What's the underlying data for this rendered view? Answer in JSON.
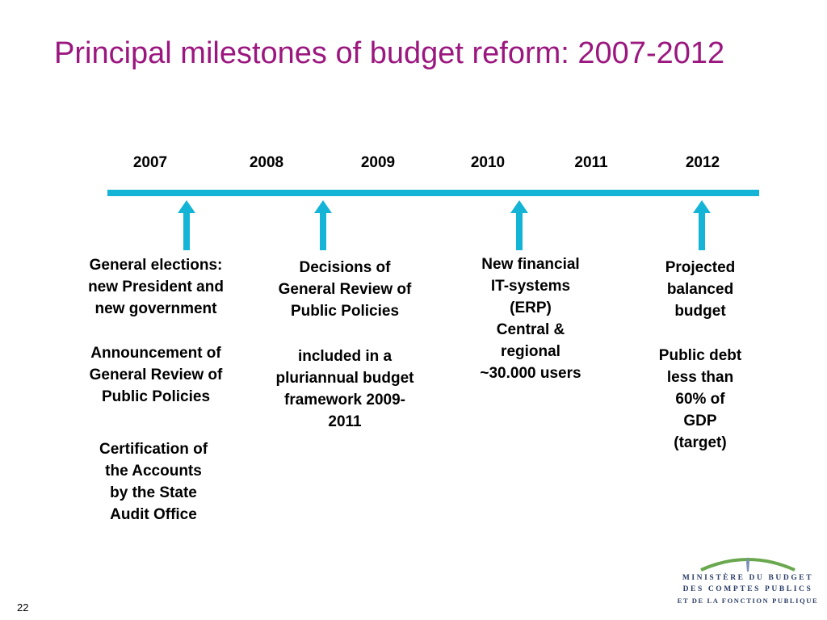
{
  "title": "Principal milestones of budget reform: 2007-2012",
  "colors": {
    "title": "#9b177f",
    "timeline": "#14b4d6",
    "logo_text": "#2a3c67",
    "logo_arc": "#6aa84f"
  },
  "years": [
    "2007",
    "2008",
    "2009",
    "2010",
    "2011",
    "2012"
  ],
  "milestones": {
    "2007": {
      "para1": [
        "General elections:",
        "new President and",
        "new government"
      ],
      "para2": [
        "Announcement of",
        "General Review of",
        "Public Policies"
      ],
      "para3": [
        "Certification of",
        "the Accounts",
        "by the State",
        "Audit Office"
      ]
    },
    "2008": {
      "para1": [
        "Decisions of",
        "General Review of",
        "Public Policies"
      ],
      "para2": [
        "included in a",
        "pluriannual budget",
        "framework 2009-",
        "2011"
      ]
    },
    "2010": {
      "para1": [
        "New financial",
        "IT-systems",
        "(ERP)",
        "Central &",
        "regional",
        "~30.000 users"
      ]
    },
    "2012": {
      "para1": [
        "Projected",
        "balanced",
        "budget"
      ],
      "para2": [
        "Public debt",
        "less than",
        "60% of",
        "GDP",
        "(target)"
      ]
    }
  },
  "page_number": "22",
  "logo": {
    "line1": "MINISTÈRE DU BUDGET",
    "line2": "DES COMPTES PUBLICS",
    "line3": "ET DE LA FONCTION PUBLIQUE"
  }
}
